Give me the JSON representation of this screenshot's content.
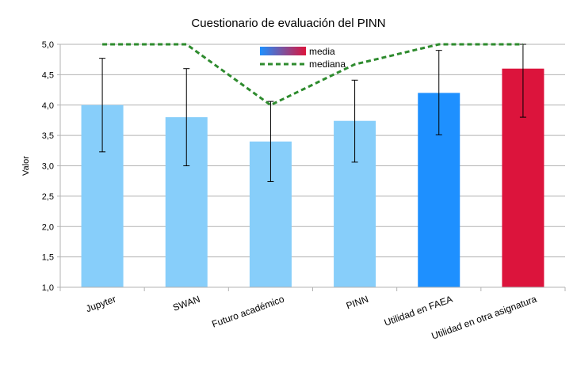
{
  "chart_data": {
    "type": "bar",
    "title": "Cuestionario de evaluación del PINN",
    "ylabel": "Valor",
    "xlabel": "",
    "ylim": [
      1.0,
      5.0
    ],
    "yticks": [
      "1,0",
      "1,5",
      "2,0",
      "2,5",
      "3,0",
      "3,5",
      "4,0",
      "4,5",
      "5,0"
    ],
    "categories": [
      "Jupyter",
      "SWAN",
      "Futuro académico",
      "PINN",
      "Utilidad en FAEA",
      "Utilidad en otra asignatura"
    ],
    "series": [
      {
        "name": "media",
        "values": [
          4.0,
          3.8,
          3.4,
          3.74,
          4.2,
          4.6
        ],
        "error_low": [
          3.23,
          3.0,
          2.74,
          3.06,
          3.51,
          3.8
        ],
        "error_high": [
          4.77,
          4.6,
          4.06,
          4.41,
          4.9,
          5.0
        ],
        "colors": [
          "#87cefa",
          "#87cefa",
          "#87cefa",
          "#87cefa",
          "#1e90ff",
          "#dc143c"
        ]
      },
      {
        "name": "mediana",
        "values": [
          5.0,
          5.0,
          4.0,
          4.67,
          5.0,
          5.0
        ],
        "color": "#2e8b2e",
        "style": "dashed"
      }
    ],
    "grid": "horizontal",
    "legend_position": "top-center"
  }
}
